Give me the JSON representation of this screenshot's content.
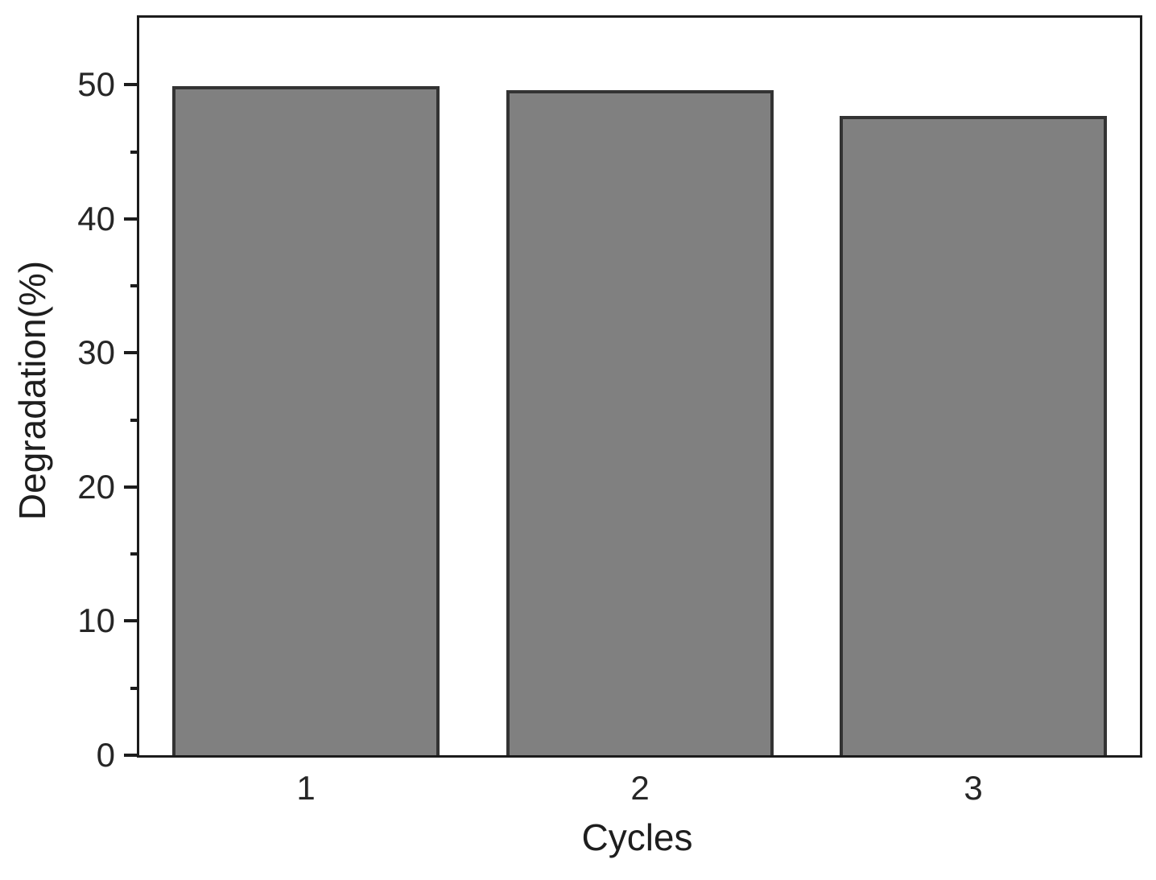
{
  "chart_data": {
    "type": "bar",
    "title": "",
    "xlabel": "Cycles",
    "ylabel": "Degradation(%)",
    "categories": [
      "1",
      "2",
      "3"
    ],
    "values": [
      49.9,
      49.6,
      47.7
    ],
    "ylim": [
      0,
      55
    ],
    "yticks": [
      0,
      10,
      20,
      30,
      40,
      50
    ],
    "minor_yticks": [
      5,
      15,
      25,
      35,
      45
    ],
    "grid": false,
    "legend": "none",
    "bar_fill_color": "#808080",
    "bar_edge_color": "#333333",
    "axis_color": "#1c1c1c",
    "tick_label_color": "#262626",
    "background_color": "#ffffff"
  }
}
